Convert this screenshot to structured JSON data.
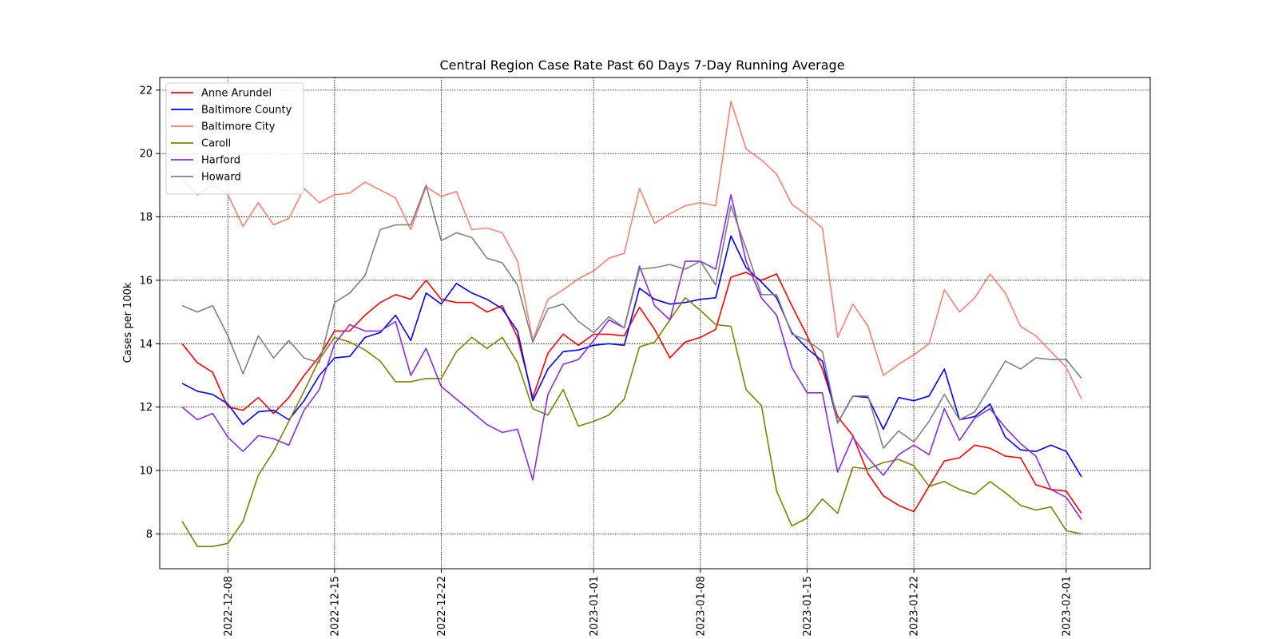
{
  "chart_data": {
    "type": "line",
    "title": "Central Region Case Rate  Past 60 Days 7-Day Running Average",
    "xlabel": "",
    "ylabel": "Cases per 100k",
    "x_start": "2022-12-05",
    "x_tick_labels": [
      "2022-12-08",
      "2022-12-15",
      "2022-12-22",
      "2023-01-01",
      "2023-01-08",
      "2023-01-15",
      "2023-01-22",
      "2023-02-01"
    ],
    "y_ticks": [
      8,
      10,
      12,
      14,
      16,
      18,
      20,
      22
    ],
    "ylim": [
      6.9,
      22.4
    ],
    "grid": true,
    "legend_position": "top-left",
    "series": [
      {
        "name": "Anne Arundel",
        "color": "#ff0000",
        "values": [
          14.0,
          13.4,
          13.1,
          12.0,
          11.9,
          12.3,
          11.8,
          12.3,
          13.0,
          13.6,
          14.4,
          14.4,
          14.9,
          15.3,
          15.55,
          15.4,
          16.0,
          15.4,
          15.3,
          15.3,
          15.0,
          15.2,
          14.2,
          12.3,
          13.7,
          14.3,
          13.95,
          14.3,
          14.3,
          14.25,
          15.15,
          14.45,
          13.55,
          14.05,
          14.2,
          14.45,
          16.1,
          16.25,
          16.0,
          16.2,
          15.2,
          14.25,
          13.2,
          11.7,
          11.1,
          9.9,
          9.2,
          8.9,
          8.7,
          9.5,
          10.3,
          10.4,
          10.8,
          10.7,
          10.45,
          10.4,
          9.55,
          9.4,
          9.35,
          8.65
        ]
      },
      {
        "name": "Baltimore County",
        "color": "#0000ff",
        "values": [
          12.75,
          12.5,
          12.4,
          12.1,
          11.45,
          11.85,
          11.9,
          11.6,
          12.2,
          13.0,
          13.55,
          13.6,
          14.2,
          14.35,
          14.9,
          14.1,
          15.6,
          15.25,
          15.9,
          15.6,
          15.4,
          15.1,
          14.4,
          12.2,
          13.2,
          13.75,
          13.8,
          13.95,
          14.0,
          13.95,
          15.75,
          15.4,
          15.25,
          15.3,
          15.4,
          15.45,
          17.4,
          16.4,
          15.95,
          15.45,
          14.35,
          13.85,
          13.45,
          11.5,
          12.35,
          12.3,
          11.3,
          12.3,
          12.2,
          12.35,
          13.2,
          11.6,
          11.7,
          12.1,
          11.05,
          10.65,
          10.6,
          10.8,
          10.6,
          9.8
        ]
      },
      {
        "name": "Baltimore City",
        "color": "#fa8072",
        "values": [
          19.2,
          18.7,
          19.0,
          18.7,
          17.7,
          18.45,
          17.75,
          17.95,
          18.9,
          18.45,
          18.7,
          18.75,
          19.1,
          18.85,
          18.6,
          17.6,
          18.95,
          18.65,
          18.8,
          17.6,
          17.65,
          17.5,
          16.6,
          14.1,
          15.4,
          15.7,
          16.05,
          16.3,
          16.7,
          16.85,
          18.9,
          17.8,
          18.1,
          18.35,
          18.45,
          18.35,
          21.65,
          20.15,
          19.8,
          19.35,
          18.4,
          18.05,
          17.65,
          14.2,
          15.25,
          14.55,
          13.0,
          13.35,
          13.65,
          14.0,
          15.7,
          15.0,
          15.45,
          16.2,
          15.6,
          14.55,
          14.25,
          13.75,
          13.25,
          12.25
        ]
      },
      {
        "name": "Caroll",
        "color": "#808000",
        "values": [
          8.4,
          7.6,
          7.6,
          7.7,
          8.4,
          9.85,
          10.6,
          11.55,
          12.5,
          13.5,
          14.2,
          14.05,
          13.8,
          13.45,
          12.8,
          12.8,
          12.9,
          12.9,
          13.75,
          14.2,
          13.85,
          14.2,
          13.4,
          11.95,
          11.75,
          12.55,
          11.4,
          11.55,
          11.75,
          12.25,
          13.9,
          14.05,
          14.75,
          15.45,
          15.05,
          14.6,
          14.55,
          12.55,
          12.05,
          9.35,
          8.25,
          8.5,
          9.1,
          8.65,
          10.1,
          10.05,
          10.25,
          10.35,
          10.15,
          9.5,
          9.65,
          9.4,
          9.25,
          9.65,
          9.3,
          8.9,
          8.75,
          8.85,
          8.1,
          8.0
        ]
      },
      {
        "name": "Harford",
        "color": "#8a2be2",
        "values": [
          12.0,
          11.6,
          11.8,
          11.05,
          10.6,
          11.1,
          11.0,
          10.8,
          11.9,
          12.55,
          14.0,
          14.6,
          14.4,
          14.4,
          14.7,
          13.0,
          13.85,
          12.65,
          12.25,
          11.85,
          11.45,
          11.2,
          11.3,
          9.7,
          12.4,
          13.35,
          13.5,
          14.1,
          14.75,
          14.5,
          16.45,
          15.2,
          14.75,
          16.6,
          16.6,
          16.35,
          18.7,
          16.6,
          15.45,
          14.9,
          13.25,
          12.45,
          12.45,
          9.95,
          11.05,
          10.4,
          9.85,
          10.5,
          10.8,
          10.5,
          11.95,
          10.95,
          11.65,
          11.95,
          11.35,
          10.85,
          10.45,
          9.4,
          9.15,
          8.45
        ]
      },
      {
        "name": "Howard",
        "color": "#808080",
        "values": [
          15.2,
          15.0,
          15.2,
          14.25,
          13.05,
          14.25,
          13.55,
          14.1,
          13.55,
          13.4,
          15.3,
          15.6,
          16.15,
          17.6,
          17.75,
          17.75,
          19.0,
          17.25,
          17.5,
          17.35,
          16.7,
          16.55,
          15.85,
          14.05,
          15.1,
          15.25,
          14.7,
          14.35,
          14.85,
          14.5,
          16.35,
          16.4,
          16.5,
          16.35,
          16.6,
          15.85,
          18.35,
          17.0,
          15.55,
          15.55,
          14.3,
          14.1,
          13.75,
          11.5,
          12.35,
          12.35,
          10.7,
          11.25,
          10.9,
          11.55,
          12.4,
          11.6,
          11.85,
          12.65,
          13.45,
          13.2,
          13.55,
          13.5,
          13.5,
          12.9
        ]
      }
    ]
  }
}
